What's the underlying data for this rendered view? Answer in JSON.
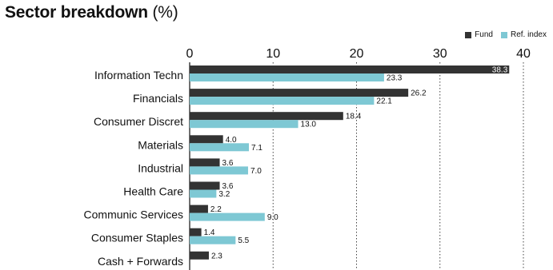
{
  "title": "Sector breakdown",
  "title_unit": "(%)",
  "colors": {
    "fund": "#333333",
    "index": "#7ec8d4"
  },
  "chart_data": {
    "type": "bar",
    "orientation": "horizontal",
    "title": "Sector breakdown (%)",
    "categories": [
      "Information Techn",
      "Financials",
      "Consumer Discret",
      "Materials",
      "Industrial",
      "Health Care",
      "Communic Services",
      "Consumer Staples",
      "Cash + Forwards"
    ],
    "series": [
      {
        "name": "Fund",
        "values": [
          38.3,
          26.2,
          18.4,
          4.0,
          3.6,
          3.6,
          2.2,
          1.4,
          2.3
        ]
      },
      {
        "name": "Ref. index",
        "values": [
          23.3,
          22.1,
          13.0,
          7.1,
          7.0,
          3.2,
          9.0,
          5.5,
          null
        ]
      }
    ],
    "value_labels": [
      [
        "38.3",
        "26.2",
        "18.4",
        "4.0",
        "3.6",
        "3.6",
        "2.2",
        "1.4",
        "2.3"
      ],
      [
        "23.3",
        "22.1",
        "13.0",
        "7.1",
        "7.0",
        "3.2",
        "9.0",
        "5.5",
        ""
      ]
    ],
    "xlim": [
      0,
      40
    ],
    "xticks": [
      0,
      10,
      20,
      30,
      40
    ],
    "xtick_labels": [
      "0",
      "10",
      "20",
      "30",
      "40"
    ],
    "grid": "vertical-dotted",
    "legend": "top-right"
  }
}
